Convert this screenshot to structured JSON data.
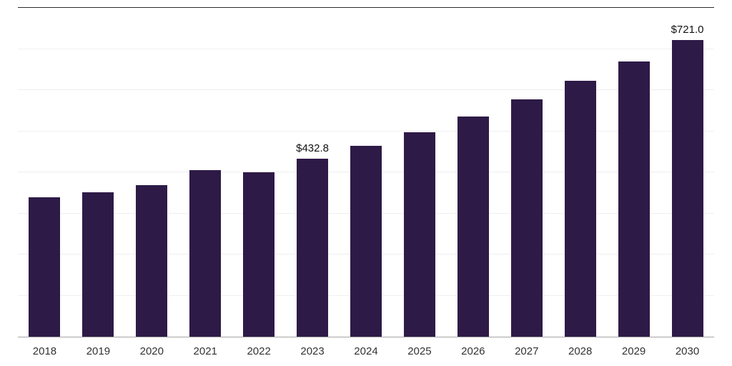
{
  "chart_data": {
    "type": "bar",
    "title": "",
    "xlabel": "",
    "ylabel": "",
    "categories": [
      "2018",
      "2019",
      "2020",
      "2021",
      "2022",
      "2023",
      "2024",
      "2025",
      "2026",
      "2027",
      "2028",
      "2029",
      "2030"
    ],
    "values": [
      340,
      352,
      368,
      405,
      400,
      432.8,
      465,
      498,
      535,
      577,
      622,
      670,
      721
    ],
    "value_labels": [
      "",
      "",
      "",
      "",
      "",
      "$432.8",
      "",
      "",
      "",
      "",
      "",
      "",
      "$721.0"
    ],
    "ylim": [
      0,
      800
    ],
    "gridline_step": 100,
    "grid": true,
    "legend": false,
    "colors": {
      "bar": "#2e1a47",
      "gridline": "#efeff1",
      "top_border": "#2b2b2b",
      "axis_line": "#a6a6a6",
      "tick_label": "#333333",
      "value_label": "#111111"
    }
  }
}
